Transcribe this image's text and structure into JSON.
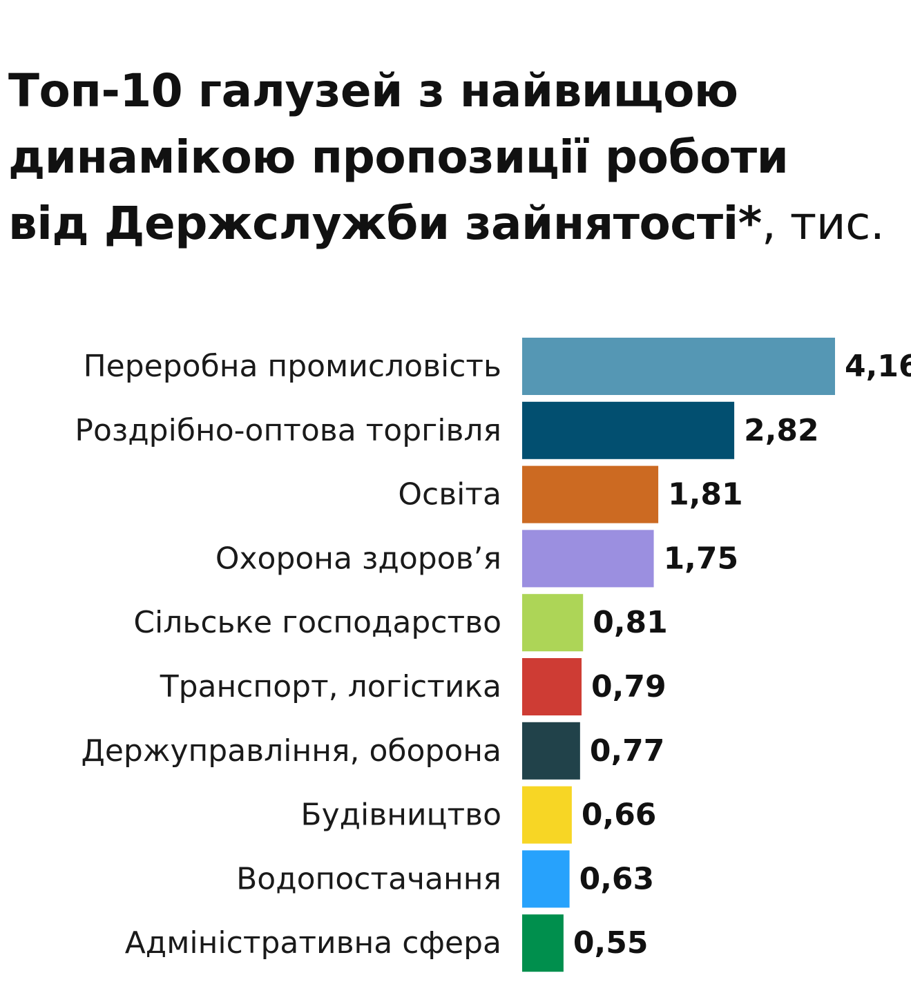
{
  "title": {
    "line1": "Топ-10 галузей з найвищою",
    "line2": "динамікою пропозиції роботи",
    "line3": "від Держслужби  зайнятості*",
    "unit": ", тис."
  },
  "chart_data": {
    "type": "bar",
    "orientation": "horizontal",
    "categories": [
      "Переробна промисловість",
      "Роздрібно-оптова торгівля",
      "Освіта",
      "Охорона здоров’я",
      "Сільське господарство",
      "Транспорт, логістика",
      "Держуправління, оборона",
      "Будівництво",
      "Водопостачання",
      "Адміністративна сфера"
    ],
    "values": [
      4.16,
      2.82,
      1.81,
      1.75,
      0.81,
      0.79,
      0.77,
      0.66,
      0.63,
      0.55
    ],
    "value_labels": [
      "4,16",
      "2,82",
      "1,81",
      "1,75",
      "0,81",
      "0,79",
      "0,77",
      "0,66",
      "0,63",
      "0,55"
    ],
    "colors": [
      "#5597b4",
      "#024f70",
      "#cc6a22",
      "#9b8fe0",
      "#add557",
      "#ce3c34",
      "#21424a",
      "#f7d625",
      "#27a2fc",
      "#008f4d"
    ],
    "xlim": [
      0,
      4.16
    ],
    "grid": false,
    "legend": "none"
  }
}
